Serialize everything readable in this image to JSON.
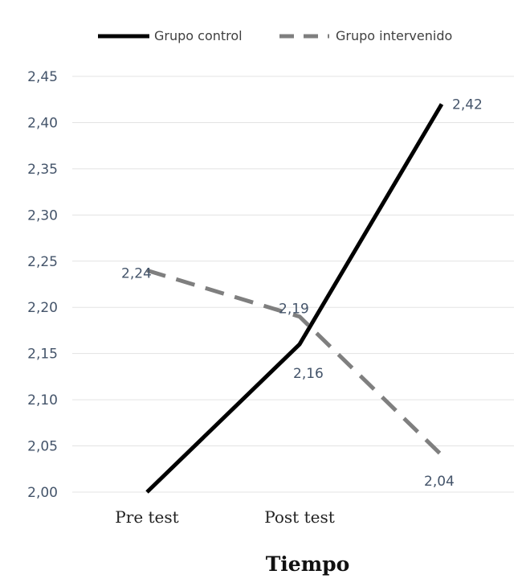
{
  "chart_data": {
    "type": "line",
    "categories": [
      "Pre test",
      "Post test",
      ""
    ],
    "xlabel": "Tiempo",
    "ylabel": "",
    "ylim": [
      2.0,
      2.45
    ],
    "yticks": [
      "2,00",
      "2,05",
      "2,10",
      "2,15",
      "2,20",
      "2,25",
      "2,30",
      "2,35",
      "2,40",
      "2,45"
    ],
    "grid": true,
    "legend_position": "top",
    "series": [
      {
        "name": "Grupo control",
        "style": "solid",
        "color": "#000000",
        "values": [
          2.0,
          2.16,
          2.42
        ],
        "labels": [
          "",
          "2,16",
          "2,42"
        ]
      },
      {
        "name": "Grupo intervenido",
        "style": "dashed",
        "color": "#7f7f7f",
        "values": [
          2.24,
          2.19,
          2.04
        ],
        "labels": [
          "2,24",
          "2,19",
          "2,04"
        ]
      }
    ]
  }
}
